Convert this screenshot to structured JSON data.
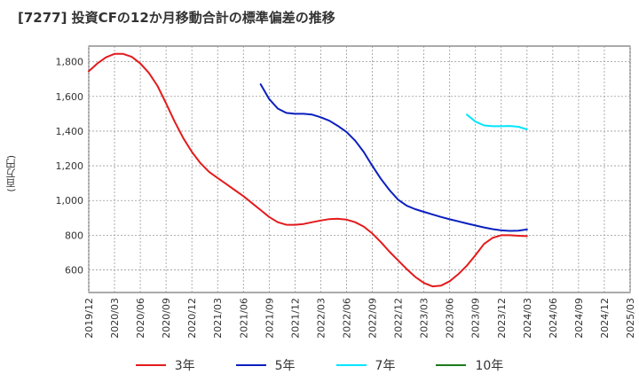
{
  "title": "[7277]  投資CFの12か月移動合計の標準偏差の推移",
  "ylabel": "(百万円)",
  "chart_data": {
    "type": "line",
    "title": "[7277]  投資CFの12か月移動合計の標準偏差の推移",
    "ylabel": "(百万円)",
    "xlabel": "",
    "ylim": [
      470,
      1890
    ],
    "y_ticks": [
      600,
      800,
      1000,
      1200,
      1400,
      1600,
      1800
    ],
    "y_tick_labels": [
      "600",
      "800",
      "1,000",
      "1,200",
      "1,400",
      "1,600",
      "1,800"
    ],
    "x_ticks": [
      "2019/12",
      "2020/03",
      "2020/06",
      "2020/09",
      "2020/12",
      "2021/03",
      "2021/06",
      "2021/09",
      "2021/12",
      "2022/03",
      "2022/06",
      "2022/09",
      "2022/12",
      "2023/03",
      "2023/06",
      "2023/09",
      "2023/12",
      "2024/03",
      "2024/06",
      "2024/09",
      "2024/12",
      "2025/03"
    ],
    "grid": true,
    "legend_position": "bottom",
    "series": [
      {
        "name": "3年",
        "color": "#e31a1c",
        "x": [
          "2019/12",
          "2020/01",
          "2020/02",
          "2020/03",
          "2020/04",
          "2020/05",
          "2020/06",
          "2020/07",
          "2020/08",
          "2020/09",
          "2020/10",
          "2020/11",
          "2020/12",
          "2021/01",
          "2021/02",
          "2021/03",
          "2021/04",
          "2021/05",
          "2021/06",
          "2021/07",
          "2021/08",
          "2021/09",
          "2021/10",
          "2021/11",
          "2021/12",
          "2022/01",
          "2022/02",
          "2022/03",
          "2022/04",
          "2022/05",
          "2022/06",
          "2022/07",
          "2022/08",
          "2022/09",
          "2022/10",
          "2022/11",
          "2022/12",
          "2023/01",
          "2023/02",
          "2023/03",
          "2023/04",
          "2023/05",
          "2023/06",
          "2023/07",
          "2023/08",
          "2023/09",
          "2023/10",
          "2023/11",
          "2023/12",
          "2024/01",
          "2024/02",
          "2024/03"
        ],
        "values": [
          1745,
          1790,
          1825,
          1845,
          1845,
          1828,
          1790,
          1735,
          1660,
          1560,
          1455,
          1360,
          1280,
          1215,
          1165,
          1130,
          1095,
          1060,
          1025,
          985,
          945,
          905,
          875,
          860,
          860,
          865,
          875,
          885,
          893,
          895,
          890,
          875,
          850,
          810,
          760,
          705,
          655,
          605,
          560,
          525,
          505,
          510,
          535,
          575,
          625,
          685,
          750,
          785,
          800,
          800,
          797,
          795
        ]
      },
      {
        "name": "5年",
        "color": "#0a1fbf",
        "x": [
          "2021/08",
          "2021/09",
          "2021/10",
          "2021/11",
          "2021/12",
          "2022/01",
          "2022/02",
          "2022/03",
          "2022/04",
          "2022/05",
          "2022/06",
          "2022/07",
          "2022/08",
          "2022/09",
          "2022/10",
          "2022/11",
          "2022/12",
          "2023/01",
          "2023/02",
          "2023/03",
          "2023/04",
          "2023/05",
          "2023/06",
          "2023/07",
          "2023/08",
          "2023/09",
          "2023/10",
          "2023/11",
          "2023/12",
          "2024/01",
          "2024/02",
          "2024/03"
        ],
        "values": [
          1670,
          1585,
          1530,
          1505,
          1500,
          1500,
          1495,
          1480,
          1460,
          1430,
          1395,
          1345,
          1280,
          1200,
          1125,
          1060,
          1005,
          970,
          950,
          935,
          920,
          905,
          892,
          880,
          868,
          856,
          845,
          835,
          828,
          825,
          826,
          833
        ]
      },
      {
        "name": "7年",
        "color": "#00e5ff",
        "x": [
          "2023/08",
          "2023/09",
          "2023/10",
          "2023/11",
          "2023/12",
          "2024/01",
          "2024/02",
          "2024/03"
        ],
        "values": [
          1495,
          1455,
          1433,
          1428,
          1428,
          1430,
          1425,
          1410
        ]
      },
      {
        "name": "10年",
        "color": "#1a7a1a",
        "x": [],
        "values": []
      }
    ]
  }
}
